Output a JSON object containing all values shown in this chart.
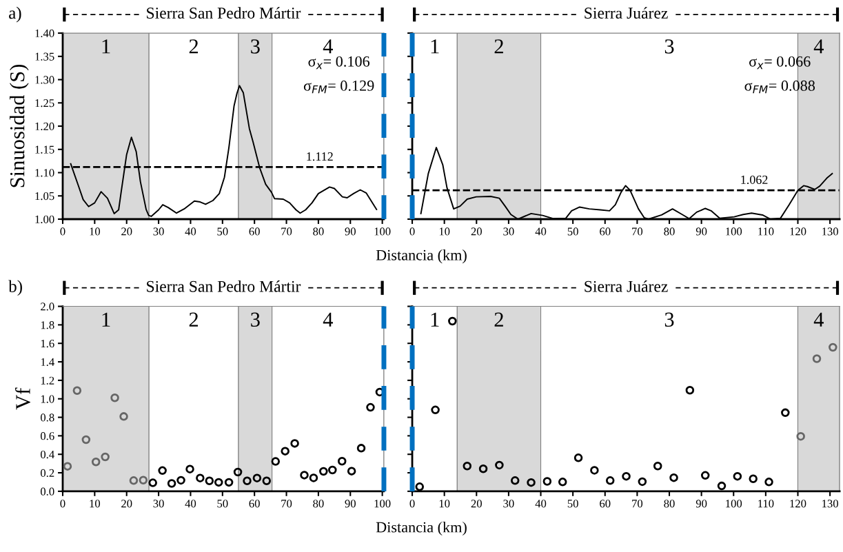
{
  "chart_data": [
    {
      "type": "line",
      "title": "Sierra San Pedro Mártir",
      "ylabel": "Sinuosidad (S)",
      "xlabel": "Distancia (km)",
      "annotations": [
        "a)",
        "σ$_{x}$= 0.106",
        "σ$_{FM}$= 0.129"
      ],
      "series": [
        {
          "color": "#000000",
          "x": [
            2.5,
            5,
            6.4,
            8.1,
            10,
            12,
            14,
            16.1,
            17.5,
            18.3,
            20,
            21.5,
            23,
            24.3,
            26.1,
            26.9,
            27.7,
            30,
            31.3,
            33,
            35.6,
            38,
            41.2,
            43,
            44.7,
            47,
            49,
            50.6,
            52,
            53.6,
            54.5,
            55.3,
            56.5,
            58.4,
            59.6,
            61.6,
            63.5,
            65.3,
            66.3,
            69,
            71,
            73,
            74.3,
            76,
            78,
            80,
            83.5,
            85,
            87.5,
            89,
            91,
            93.1,
            95,
            98.2
          ],
          "values": [
            1.119,
            1.07,
            1.042,
            1.027,
            1.035,
            1.059,
            1.045,
            1.012,
            1.02,
            1.059,
            1.139,
            1.176,
            1.145,
            1.081,
            1.021,
            1.008,
            1.006,
            1.02,
            1.031,
            1.025,
            1.013,
            1.022,
            1.039,
            1.037,
            1.032,
            1.04,
            1.055,
            1.09,
            1.154,
            1.243,
            1.27,
            1.287,
            1.272,
            1.195,
            1.165,
            1.111,
            1.075,
            1.058,
            1.044,
            1.043,
            1.035,
            1.02,
            1.013,
            1.02,
            1.035,
            1.055,
            1.069,
            1.066,
            1.048,
            1.046,
            1.055,
            1.063,
            1.056,
            1.021
          ]
        }
      ],
      "xlim": [
        0,
        100.5
      ],
      "xticks": [
        0,
        10,
        20,
        30,
        40,
        50,
        60,
        70,
        80,
        90,
        100
      ],
      "ylim": [
        1.0,
        1.4
      ],
      "yticks": [
        {
          "value": 1.0,
          "label": "1.00"
        },
        {
          "value": 1.05,
          "label": "1.05"
        },
        {
          "value": 1.1,
          "label": "1.10"
        },
        {
          "value": 1.15,
          "label": "1.15"
        },
        {
          "value": 1.2,
          "label": "1.20"
        },
        {
          "value": 1.25,
          "label": "1.25"
        },
        {
          "value": 1.3,
          "label": "1.30"
        },
        {
          "value": 1.35,
          "label": "1.35"
        },
        {
          "value": 1.4,
          "label": "1.40"
        }
      ],
      "bands": [
        {
          "axis": "x",
          "from": 0,
          "to": 27,
          "label": "1",
          "color": "#d9d9d9"
        },
        {
          "axis": "x",
          "from": 27,
          "to": 55,
          "label": "2",
          "color": "#ffffff"
        },
        {
          "axis": "x",
          "from": 55,
          "to": 65.5,
          "label": "3",
          "color": "#d9d9d9"
        },
        {
          "axis": "x",
          "from": 65.5,
          "to": 100.5,
          "label": "4",
          "color": "#ffffff"
        }
      ],
      "ref_lines": [
        {
          "axis": "y",
          "value": 1.112,
          "label": "1.112",
          "color": "#000000",
          "line_style": "dashed"
        },
        {
          "axis": "x",
          "value": 100.5,
          "color": "#0070c0",
          "line_style": "dashed"
        }
      ],
      "marker": "none",
      "line_style": "solid",
      "grid": false,
      "legend": false
    },
    {
      "type": "line",
      "title": "Sierra Juárez",
      "annotations": [
        "σ$_{x}$= 0.066",
        "σ$_{FM}$= 0.088"
      ],
      "series": [
        {
          "color": "#000000",
          "x": [
            2.7,
            5,
            7.5,
            9.5,
            10.8,
            12.9,
            14.9,
            17.1,
            19.9,
            24.4,
            27.1,
            28.9,
            30.7,
            32.9,
            37,
            40.6,
            44,
            47.8,
            49.6,
            52.1,
            55.1,
            58.5,
            61.4,
            63.2,
            65,
            66.4,
            67.8,
            70.4,
            72.2,
            73.5,
            77.6,
            81,
            84,
            86.2,
            88.5,
            91.2,
            93,
            95.7,
            100.2,
            103,
            105.6,
            109,
            111.5,
            114.6,
            117.3,
            120,
            121.8,
            123,
            125.3,
            126.8,
            129,
            130.7
          ],
          "values": [
            1.012,
            1.098,
            1.154,
            1.117,
            1.068,
            1.022,
            1.028,
            1.043,
            1.048,
            1.049,
            1.045,
            1.028,
            1.01,
            1.0,
            1.012,
            1.008,
            1.001,
            1.002,
            1.018,
            1.026,
            1.022,
            1.02,
            1.018,
            1.031,
            1.058,
            1.072,
            1.062,
            1.022,
            1.003,
            1.0,
            1.009,
            1.022,
            1.01,
            1.001,
            1.015,
            1.023,
            1.018,
            1.002,
            1.005,
            1.01,
            1.013,
            1.009,
            1.0,
            1.002,
            1.031,
            1.062,
            1.072,
            1.07,
            1.064,
            1.071,
            1.088,
            1.098
          ]
        }
      ],
      "xlim": [
        0,
        133
      ],
      "xticks": [
        0,
        10,
        20,
        30,
        40,
        50,
        60,
        70,
        80,
        90,
        100,
        110,
        120,
        130
      ],
      "ylim": [
        1.0,
        1.4
      ],
      "yticks": [
        1.0,
        1.05,
        1.1,
        1.15,
        1.2,
        1.25,
        1.3,
        1.35,
        1.4
      ],
      "tick_labels": "x",
      "bands": [
        {
          "axis": "x",
          "from": 0,
          "to": 14,
          "label": "1",
          "color": "#ffffff"
        },
        {
          "axis": "x",
          "from": 14,
          "to": 40,
          "label": "2",
          "color": "#d9d9d9"
        },
        {
          "axis": "x",
          "from": 40,
          "to": 120,
          "label": "3",
          "color": "#ffffff"
        },
        {
          "axis": "x",
          "from": 120,
          "to": 133,
          "label": "4",
          "color": "#d9d9d9"
        }
      ],
      "ref_lines": [
        {
          "axis": "y",
          "value": 1.062,
          "label": "1.062",
          "color": "#000000",
          "line_style": "dashed"
        },
        {
          "axis": "x",
          "value": 0,
          "color": "#0070c0",
          "line_style": "dashed"
        }
      ],
      "marker": "none",
      "line_style": "solid",
      "grid": false,
      "legend": false
    },
    {
      "type": "scatter",
      "title": "Sierra San Pedro Mártir",
      "ylabel": "Vf",
      "xlabel": "Distancia (km)",
      "annotations": [
        "b)"
      ],
      "series": [
        {
          "color": "#666666",
          "x": [
            1.5,
            4.5,
            7.3,
            10.4,
            13.3,
            16.3,
            19.1,
            22.2,
            25.2
          ],
          "values": [
            0.27,
            1.089,
            0.558,
            0.318,
            0.372,
            1.011,
            0.809,
            0.116,
            0.12
          ]
        },
        {
          "color": "#000000",
          "x": [
            28.2,
            31.2,
            34.1,
            37.0,
            39.8,
            43.0,
            45.9,
            48.8,
            52.0,
            54.8,
            57.7,
            60.8,
            63.8,
            66.6,
            69.6,
            72.6,
            75.6,
            78.5,
            81.6,
            84.4,
            87.4,
            90.4,
            93.4,
            96.3,
            99.2
          ],
          "values": [
            0.092,
            0.224,
            0.085,
            0.119,
            0.24,
            0.143,
            0.113,
            0.097,
            0.097,
            0.208,
            0.113,
            0.143,
            0.113,
            0.323,
            0.434,
            0.518,
            0.175,
            0.145,
            0.215,
            0.23,
            0.325,
            0.218,
            0.466,
            0.908,
            1.073
          ]
        }
      ],
      "xlim": [
        0,
        100.5
      ],
      "xticks": [
        0,
        10,
        20,
        30,
        40,
        50,
        60,
        70,
        80,
        90,
        100
      ],
      "ylim": [
        0,
        2.0
      ],
      "yticks": [
        {
          "value": 0,
          "label": "0.0"
        },
        {
          "value": 0.2,
          "label": "0.2"
        },
        {
          "value": 0.4,
          "label": "0.4"
        },
        {
          "value": 0.6,
          "label": "0.6"
        },
        {
          "value": 0.8,
          "label": "0.8"
        },
        {
          "value": 1.0,
          "label": "1.0"
        },
        {
          "value": 1.2,
          "label": "1.2"
        },
        {
          "value": 1.4,
          "label": "1.4"
        },
        {
          "value": 1.6,
          "label": "1.6"
        },
        {
          "value": 1.8,
          "label": "1.8"
        },
        {
          "value": 2.0,
          "label": "2.0"
        }
      ],
      "bands": [
        {
          "axis": "x",
          "from": 0,
          "to": 27,
          "label": "1",
          "color": "#d9d9d9"
        },
        {
          "axis": "x",
          "from": 27,
          "to": 55,
          "label": "2",
          "color": "#ffffff"
        },
        {
          "axis": "x",
          "from": 55,
          "to": 65.5,
          "label": "3",
          "color": "#d9d9d9"
        },
        {
          "axis": "x",
          "from": 65.5,
          "to": 100.5,
          "label": "4",
          "color": "#ffffff"
        }
      ],
      "ref_lines": [
        {
          "axis": "x",
          "value": 100.5,
          "color": "#0070c0",
          "line_style": "dashed"
        }
      ],
      "marker": "circle",
      "grid": false,
      "legend": false
    },
    {
      "type": "scatter",
      "title": "Sierra Juárez",
      "series": [
        {
          "color": "#000000",
          "x": [
            2.3,
            7.2,
            12.5,
            17.1,
            22.1,
            27.1,
            32.0,
            37.0,
            42.0,
            46.8,
            51.7,
            56.7,
            61.6,
            66.6,
            71.6,
            76.4,
            81.4,
            86.4,
            91.2,
            96.3,
            101.2,
            106.1,
            111.0,
            116.1
          ],
          "values": [
            0.049,
            0.88,
            1.84,
            0.273,
            0.243,
            0.283,
            0.116,
            0.095,
            0.107,
            0.101,
            0.362,
            0.227,
            0.116,
            0.162,
            0.104,
            0.273,
            0.147,
            1.093,
            0.172,
            0.058,
            0.162,
            0.135,
            0.101,
            0.85
          ]
        },
        {
          "color": "#666666",
          "x": [
            120.9,
            125.9,
            130.9
          ],
          "values": [
            0.594,
            1.434,
            1.557
          ]
        }
      ],
      "xlim": [
        0,
        133
      ],
      "xticks": [
        0,
        10,
        20,
        30,
        40,
        50,
        60,
        70,
        80,
        90,
        100,
        110,
        120,
        130
      ],
      "ylim": [
        0,
        2.0
      ],
      "yticks": [
        0,
        0.2,
        0.4,
        0.6,
        0.8,
        1.0,
        1.2,
        1.4,
        1.6,
        1.8,
        2.0
      ],
      "tick_labels": "x",
      "bands": [
        {
          "axis": "x",
          "from": 0,
          "to": 14,
          "label": "1",
          "color": "#ffffff"
        },
        {
          "axis": "x",
          "from": 14,
          "to": 40,
          "label": "2",
          "color": "#d9d9d9"
        },
        {
          "axis": "x",
          "from": 40,
          "to": 120,
          "label": "3",
          "color": "#ffffff"
        },
        {
          "axis": "x",
          "from": 120,
          "to": 133,
          "label": "4",
          "color": "#d9d9d9"
        }
      ],
      "ref_lines": [
        {
          "axis": "x",
          "value": 0,
          "color": "#0070c0",
          "line_style": "dashed"
        }
      ],
      "marker": "circle",
      "grid": false,
      "legend": false
    }
  ]
}
